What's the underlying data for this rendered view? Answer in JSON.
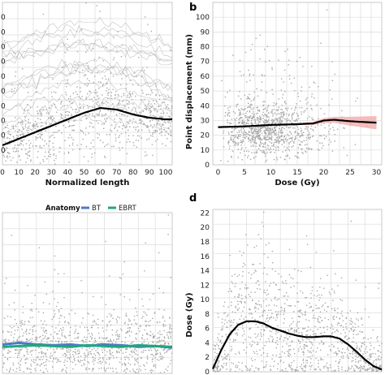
{
  "panel_labels": {
    "a": "",
    "b": "b",
    "c": "",
    "d": "d"
  },
  "colors": {
    "scatter": "#a8a8a8",
    "trend": "#000000",
    "ci_fill": "#f2a5a5",
    "ci_line": "#c0392b",
    "bt": "#4f79c9",
    "ebrt": "#1fa77a",
    "grid": "#dcdcdc",
    "panel_bg": "#ffffff"
  },
  "legend": {
    "title": "Anatomy",
    "items": [
      "BT",
      "EBRT"
    ]
  },
  "chart_data": [
    {
      "panel": "a",
      "type": "scatter",
      "xlabel": "Normalized length",
      "ylabel": "",
      "xlim": [
        0,
        104
      ],
      "ylim": [
        0,
        100
      ],
      "x_ticks": [
        0,
        10,
        20,
        30,
        40,
        50,
        60,
        70,
        80,
        90,
        100
      ],
      "y_ticks": [],
      "y_tick_marks": [
        "0",
        "0",
        "0",
        "0",
        "0",
        "0",
        "0",
        "0",
        "0",
        "0"
      ],
      "trend": {
        "x": [
          0,
          10,
          20,
          30,
          40,
          50,
          60,
          70,
          80,
          90,
          100,
          104
        ],
        "y": [
          12,
          16,
          20,
          24,
          28,
          32,
          35,
          34,
          31,
          29,
          28,
          28
        ]
      },
      "point_count": 900
    },
    {
      "panel": "b",
      "type": "scatter",
      "xlabel": "Dose (Gy)",
      "ylabel": "Point displacement (mm)",
      "xlim": [
        -1,
        31
      ],
      "ylim": [
        0,
        110
      ],
      "x_ticks": [
        0,
        5,
        10,
        15,
        20,
        25,
        30
      ],
      "y_ticks": [
        0,
        10,
        20,
        30,
        40,
        50,
        60,
        70,
        80,
        90,
        100
      ],
      "trend": {
        "x": [
          0,
          5,
          10,
          15,
          18,
          20,
          22,
          25,
          30
        ],
        "y": [
          25.5,
          26,
          27,
          27.5,
          28,
          30,
          30.5,
          29.5,
          28.5
        ]
      },
      "ci_halfwidth": {
        "x": [
          0,
          5,
          10,
          15,
          18,
          20,
          22,
          25,
          30
        ],
        "y": [
          0.6,
          0.5,
          0.5,
          0.6,
          1.0,
          1.6,
          2.0,
          3.0,
          4.5
        ]
      },
      "point_count": 1100
    },
    {
      "panel": "c",
      "type": "scatter",
      "xlabel": "",
      "ylabel": "",
      "xlim": [
        0,
        100
      ],
      "ylim": [
        0,
        100
      ],
      "x_ticks": [],
      "y_ticks": [],
      "series": [
        {
          "name": "BT",
          "x": [
            0,
            10,
            20,
            30,
            40,
            50,
            60,
            70,
            80,
            90,
            100
          ],
          "y": [
            18,
            19,
            18,
            17.5,
            18,
            17,
            18,
            17.5,
            16.5,
            17,
            16
          ]
        },
        {
          "name": "EBRT",
          "x": [
            0,
            10,
            20,
            30,
            40,
            50,
            60,
            70,
            80,
            90,
            100
          ],
          "y": [
            16.5,
            17,
            17.5,
            17,
            16.5,
            17.5,
            17,
            16.5,
            17.5,
            17,
            16.5
          ]
        }
      ],
      "point_count": 1000
    },
    {
      "panel": "d",
      "type": "scatter",
      "xlabel": "",
      "ylabel": "Dose (Gy)",
      "xlim": [
        0,
        100
      ],
      "ylim": [
        0,
        22.5
      ],
      "x_ticks": [],
      "y_ticks": [
        0,
        2,
        4,
        6,
        8,
        10,
        12,
        14,
        16,
        18,
        20,
        22
      ],
      "trend": {
        "x": [
          0,
          5,
          10,
          15,
          20,
          25,
          30,
          35,
          40,
          45,
          50,
          55,
          60,
          65,
          70,
          75,
          80,
          85,
          90,
          95,
          100
        ],
        "y": [
          0.4,
          3,
          5.2,
          6.5,
          7,
          7,
          6.7,
          6.1,
          5.7,
          5.3,
          5,
          4.8,
          4.8,
          4.9,
          4.9,
          4.6,
          3.8,
          2.8,
          1.7,
          0.8,
          0.3
        ]
      },
      "point_count": 1100
    }
  ]
}
